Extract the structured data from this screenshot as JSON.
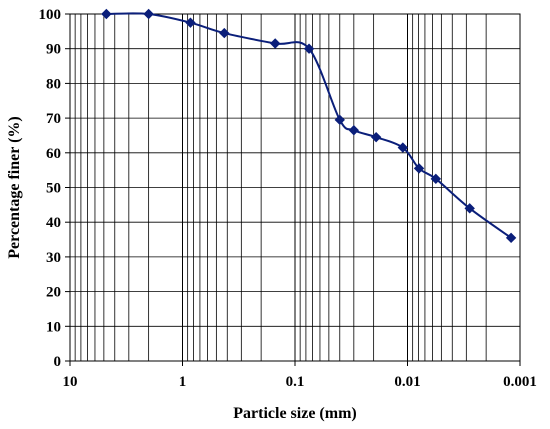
{
  "chart_data": {
    "type": "scatter",
    "title": "",
    "xlabel": "Particle size (mm)",
    "ylabel": "Percentage finer (%)",
    "x_scale": "log",
    "x_reversed": true,
    "xlim": [
      10,
      0.001
    ],
    "ylim": [
      0,
      100
    ],
    "x_ticks": [
      10,
      1,
      0.1,
      0.01,
      0.001
    ],
    "x_tick_labels": [
      "10",
      "1",
      "0.1",
      "0.01",
      "0.001"
    ],
    "y_ticks": [
      0,
      10,
      20,
      30,
      40,
      50,
      60,
      70,
      80,
      90,
      100
    ],
    "y_tick_labels": [
      "0",
      "10",
      "20",
      "30",
      "40",
      "50",
      "60",
      "70",
      "80",
      "90",
      "100"
    ],
    "grid": {
      "x_minor": true,
      "y_major": true
    },
    "legend": "none",
    "series": [
      {
        "color": "#0b1f7a",
        "marker": "diamond",
        "line": "smooth",
        "x": [
          4.75,
          2.0,
          0.85,
          0.425,
          0.15,
          0.075,
          0.04,
          0.03,
          0.019,
          0.011,
          0.0079,
          0.0056,
          0.0028,
          0.0012
        ],
        "y": [
          100,
          100,
          97.5,
          94.5,
          91.5,
          90,
          69.5,
          66.5,
          64.5,
          61.5,
          55.5,
          52.5,
          44,
          35.5
        ]
      }
    ]
  }
}
